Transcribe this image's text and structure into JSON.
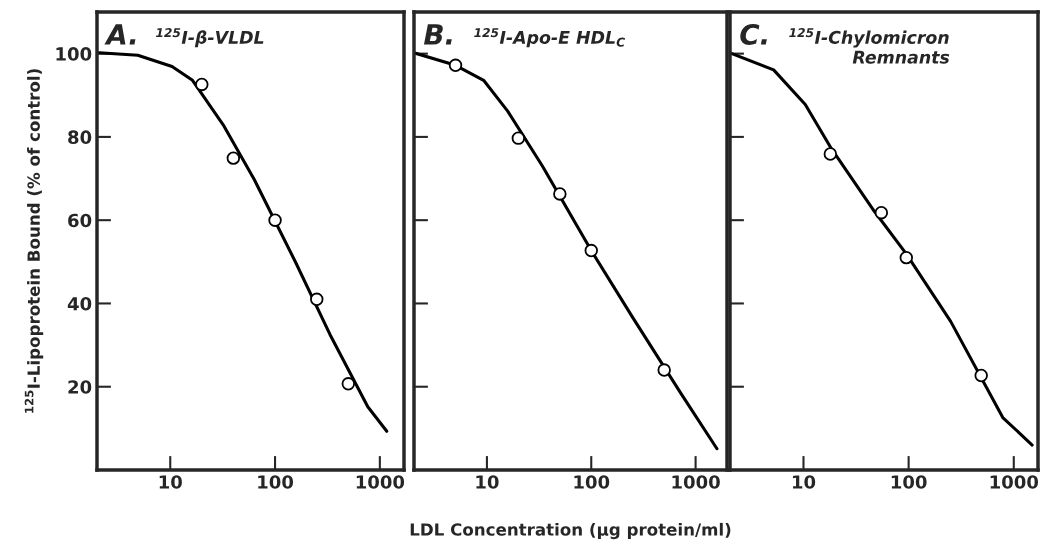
{
  "chart_data": [
    {
      "type": "scatter",
      "title": "A.",
      "subtitle": "$^{125}$I-β-VLDL",
      "ylabel": "$^{125}$I-Lipoprotein Bound (% of control)",
      "log": "x",
      "xlim": [
        2,
        1700
      ],
      "xticks": [
        10,
        100,
        1000
      ],
      "ylim": [
        0,
        110
      ],
      "yticks": [
        20,
        40,
        60,
        80,
        100
      ],
      "series": [
        {
          "type": "line",
          "color": "#000000",
          "marker": "none",
          "x": [
            2.1,
            4.9,
            10.4,
            16.3,
            32,
            63.5,
            157,
            335,
            767,
            1164
          ],
          "values": [
            100.2,
            99.6,
            96.9,
            93.6,
            82.9,
            69.7,
            49.9,
            32.5,
            15.2,
            9.3
          ]
        },
        {
          "color": "#000000",
          "marker": "circle",
          "x": [
            20,
            40,
            100,
            250,
            500
          ],
          "values": [
            92.6,
            74.9,
            60.0,
            41.0,
            20.7
          ]
        }
      ]
    },
    {
      "type": "scatter",
      "title": "B.",
      "subtitle": "$^{125}$I-Apo-E HDL$_{C}$",
      "xlabel": "LDL Concentration (µg protein/ml)",
      "log": "x",
      "xlim": [
        2,
        2000
      ],
      "xticks": [
        10,
        100,
        1000
      ],
      "ylim": [
        0,
        110
      ],
      "yticks": [
        {
          "value": 20,
          "label": null
        },
        {
          "value": 40,
          "label": null
        },
        {
          "value": 60,
          "label": null
        },
        {
          "value": 80,
          "label": null
        },
        {
          "value": 100,
          "label": null
        }
      ],
      "tick_labels": "x",
      "series": [
        {
          "type": "line",
          "color": "#000000",
          "marker": "none",
          "x": [
            2.0,
            5,
            9.3,
            15.8,
            34,
            100,
            250,
            723,
            1603
          ],
          "values": [
            100.2,
            97.2,
            93.6,
            86.2,
            73.0,
            52.7,
            36.6,
            18.4,
            5.1
          ]
        },
        {
          "color": "#000000",
          "marker": "circle",
          "x": [
            5,
            20,
            50,
            100,
            500
          ],
          "values": [
            97.2,
            79.7,
            66.3,
            52.7,
            24.0
          ]
        }
      ]
    },
    {
      "type": "scatter",
      "title": "C.",
      "subtitle": "$^{125}$I-Chylomicron\nRemnants",
      "log": "x",
      "xlim": [
        2,
        1700
      ],
      "xticks": [
        10,
        100,
        1000
      ],
      "ylim": [
        0,
        110
      ],
      "yticks": [
        {
          "value": 20,
          "label": null
        },
        {
          "value": 40,
          "label": null
        },
        {
          "value": 60,
          "label": null
        },
        {
          "value": 80,
          "label": null
        },
        {
          "value": 100,
          "label": null
        }
      ],
      "tick_labels": "x",
      "series": [
        {
          "type": "line",
          "color": "#000000",
          "marker": "none",
          "x": [
            2.0,
            5.2,
            10.4,
            18.5,
            47,
            95,
            251,
            786,
            1496
          ],
          "values": [
            100.2,
            96.1,
            87.8,
            77.1,
            62.2,
            51.9,
            35.7,
            12.6,
            6.0
          ]
        },
        {
          "color": "#000000",
          "marker": "circle",
          "x": [
            18,
            55,
            95,
            490
          ],
          "values": [
            75.9,
            61.8,
            51.0,
            22.7
          ]
        }
      ]
    }
  ]
}
